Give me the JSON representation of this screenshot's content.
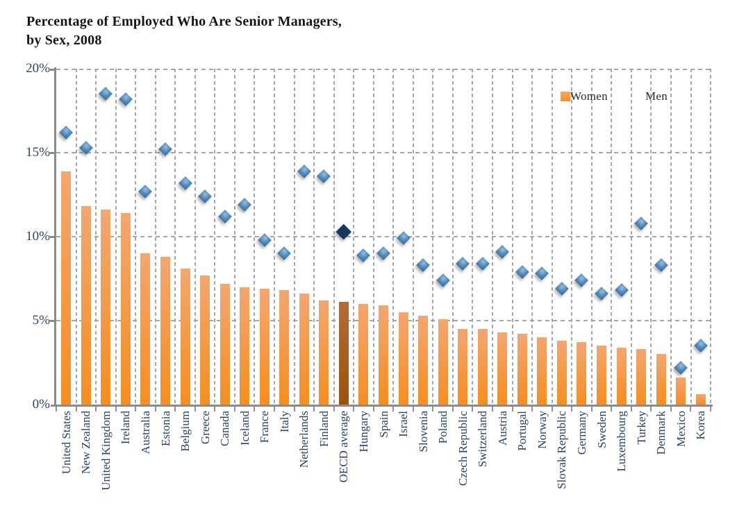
{
  "title": {
    "line1": "Percentage of Employed Who Are Senior Managers,",
    "line2": "by Sex, 2008"
  },
  "legend": {
    "women": "Women",
    "men": "Men"
  },
  "y_axis": {
    "tick_labels": [
      "20%",
      "15%",
      "10%",
      "5%",
      "0%"
    ]
  },
  "colors": {
    "women_bar_top": "#F3A670",
    "women_bar_bottom": "#F68D1F",
    "oecd_bar_top": "#B26D33",
    "oecd_bar_bottom": "#9C520F",
    "men_marker_blue": "#4D85B5",
    "oecd_marker_navy": "#17375E",
    "gridline": "#A6A6A6",
    "axis": "#8A8A8A",
    "axis_label_text": "#2A4263",
    "title_text": "#161616"
  },
  "chart_data": {
    "type": "bar",
    "subtype": "bar-with-scatter-overlay",
    "title": "Percentage of Employed Who Are Senior Managers, by Sex, 2008",
    "xlabel": "",
    "ylabel": "",
    "ylim": [
      0,
      20
    ],
    "y_ticks_percent": [
      0,
      5,
      10,
      15,
      20
    ],
    "grid": "dashed horizontal and vertical",
    "legend_position": "top-right inside plot",
    "highlight_index": 14,
    "highlight_category": "OECD average",
    "categories": [
      "United States",
      "New Zealand",
      "United Kingdom",
      "Ireland",
      "Australia",
      "Estonia",
      "Belgium",
      "Greece",
      "Canada",
      "Iceland",
      "France",
      "Italy",
      "Netherlands",
      "Finland",
      "OECD average",
      "Hungary",
      "Spain",
      "Israel",
      "Slovenia",
      "Poland",
      "Czech Republic",
      "Switzerland",
      "Austria",
      "Portugal",
      "Norway",
      "Slovak Republic",
      "Germany",
      "Sweden",
      "Luxembourg",
      "Turkey",
      "Denmark",
      "Mexico",
      "Korea"
    ],
    "series": [
      {
        "name": "Women",
        "type": "bar",
        "values": [
          13.9,
          11.8,
          11.6,
          11.4,
          9.0,
          8.8,
          8.1,
          7.7,
          7.2,
          7.0,
          6.9,
          6.8,
          6.6,
          6.2,
          6.1,
          6.0,
          5.9,
          5.5,
          5.3,
          5.1,
          4.5,
          4.5,
          4.3,
          4.2,
          4.0,
          3.8,
          3.7,
          3.5,
          3.4,
          3.3,
          3.0,
          1.6,
          0.6
        ]
      },
      {
        "name": "Men",
        "type": "scatter-diamond",
        "values": [
          16.2,
          15.3,
          18.5,
          18.2,
          12.7,
          15.2,
          13.2,
          12.4,
          11.2,
          11.9,
          9.8,
          9.0,
          13.9,
          13.6,
          10.3,
          8.9,
          9.0,
          9.9,
          8.3,
          7.4,
          8.4,
          8.4,
          9.1,
          7.9,
          7.8,
          6.9,
          7.4,
          6.6,
          6.8,
          10.8,
          8.3,
          2.2,
          3.5
        ]
      }
    ]
  }
}
